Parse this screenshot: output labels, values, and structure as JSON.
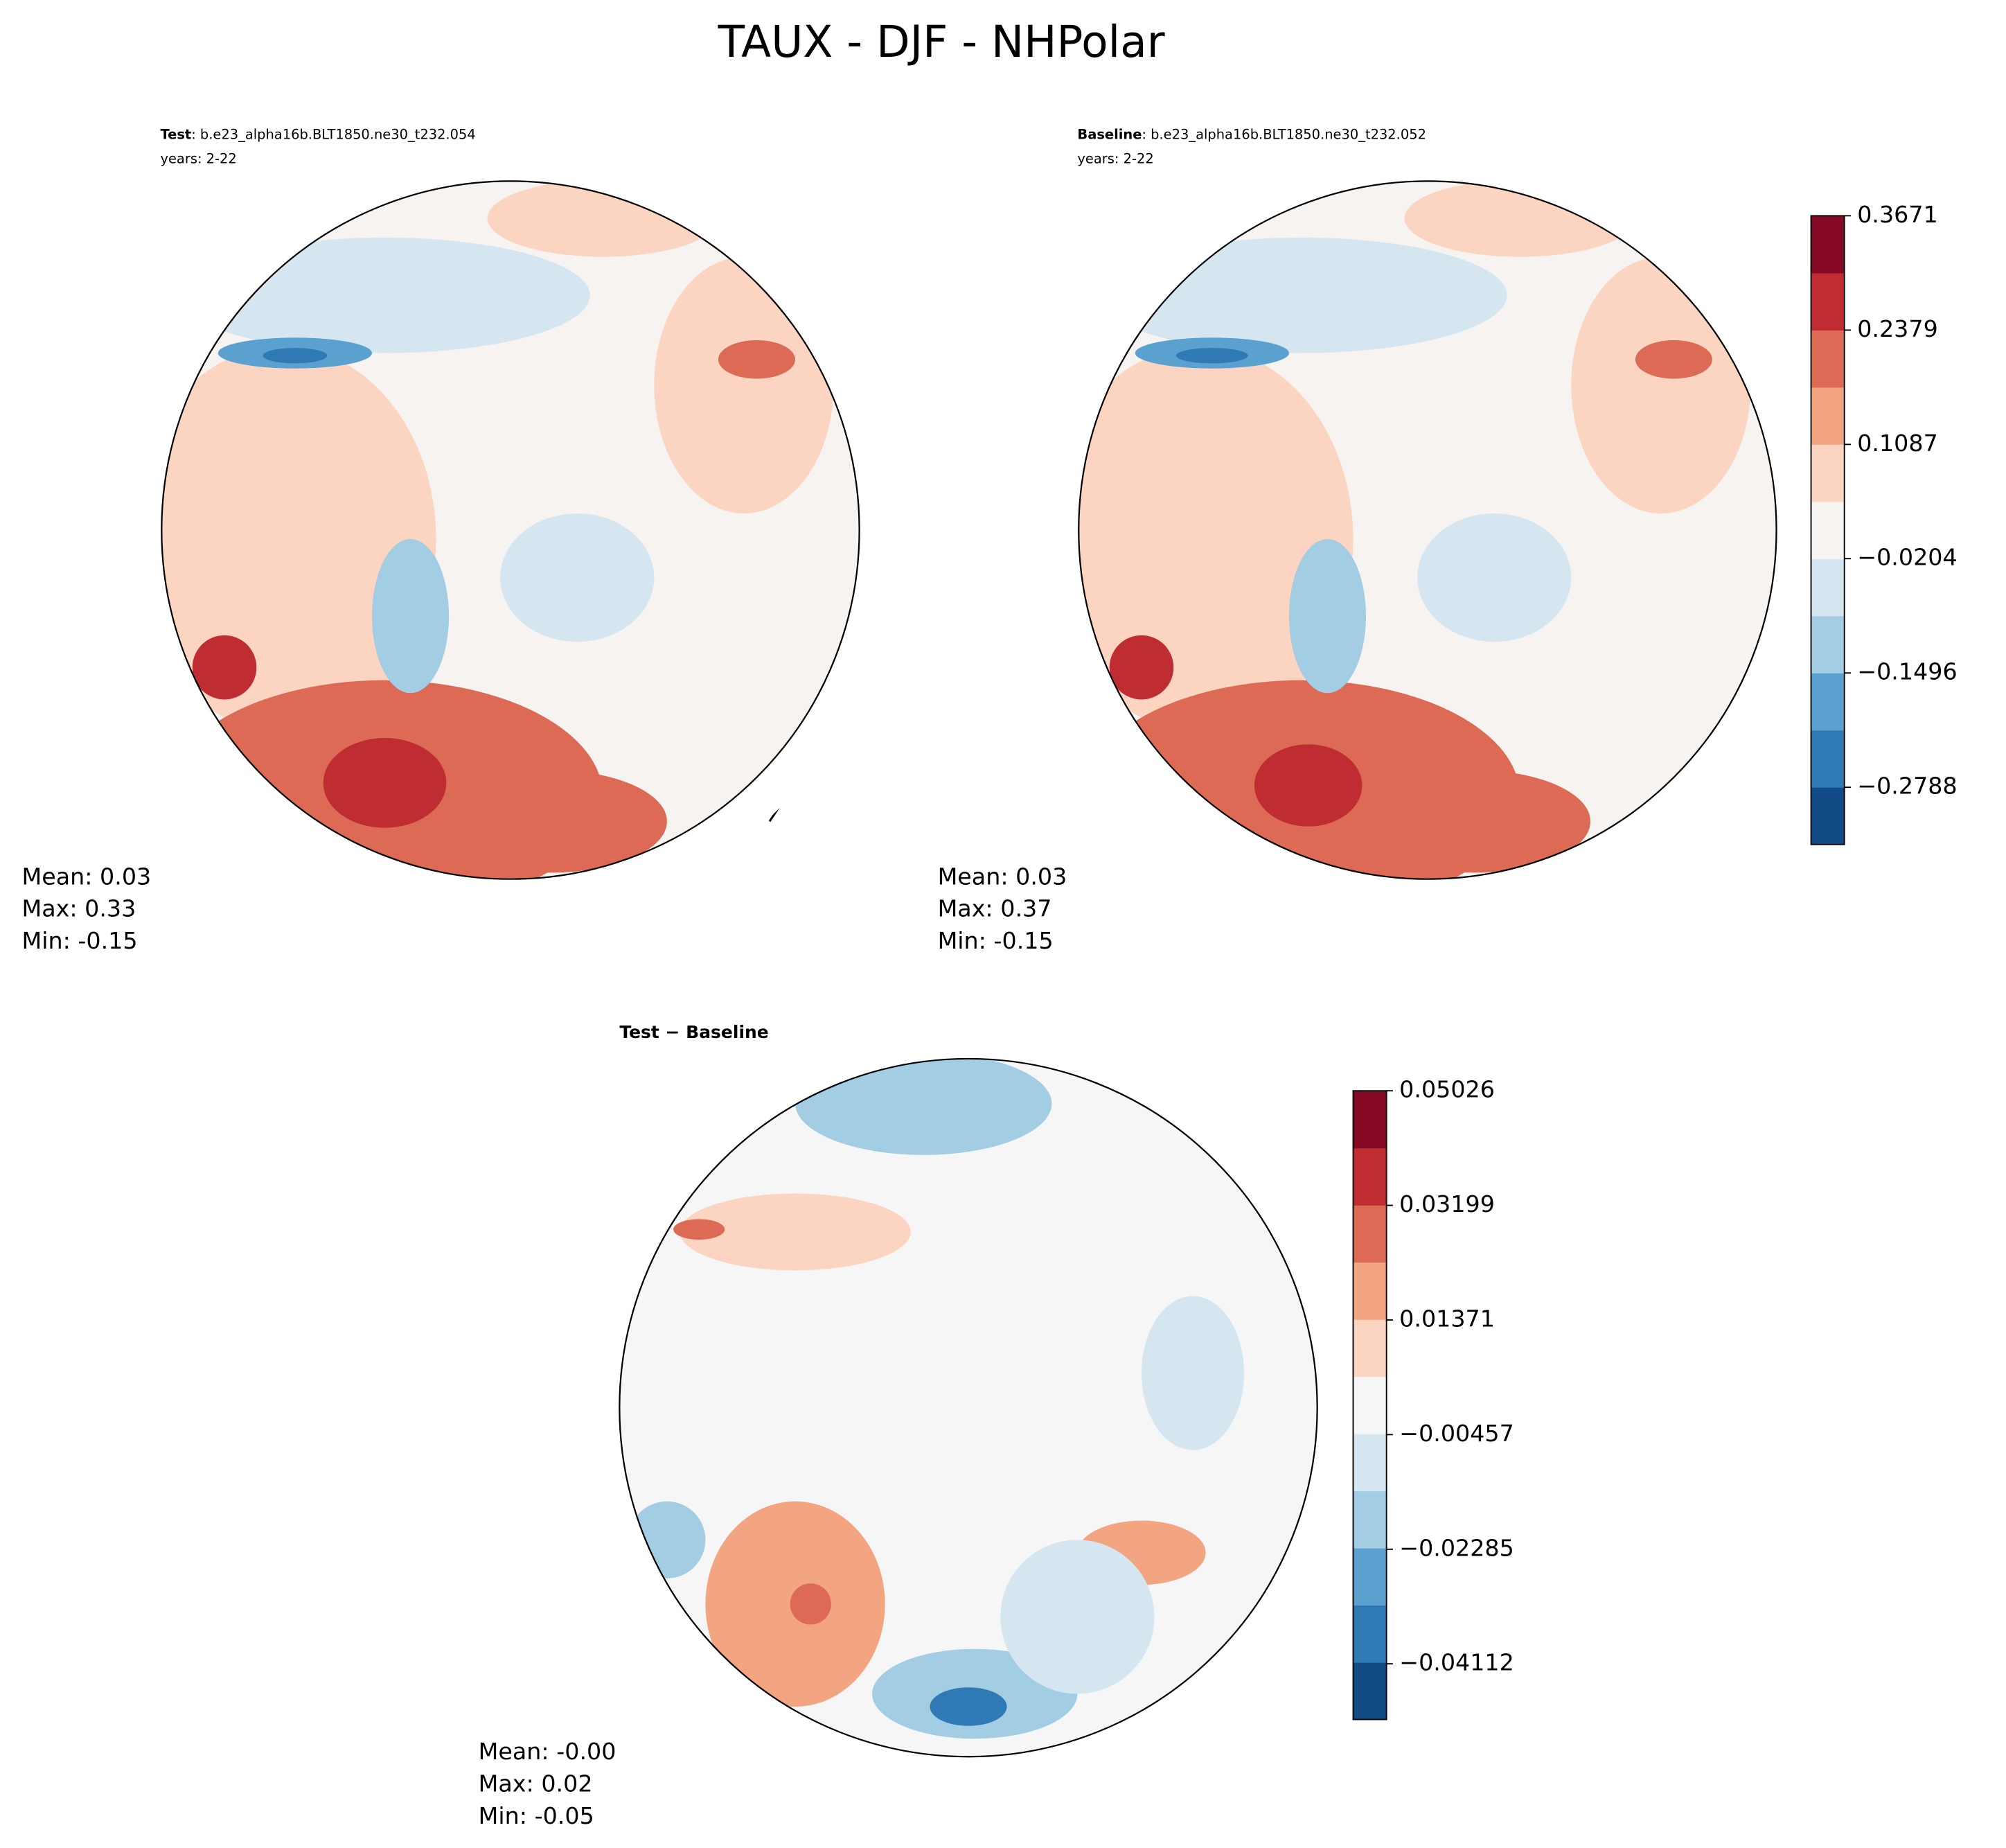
{
  "title": "TAUX - DJF - NHPolar",
  "panels": [
    {
      "name_bold": "Test",
      "name_rest": ": b.e23_alpha16b.BLT1850.ne30_t232.054",
      "years": "years: 2-22",
      "stats": [
        "Mean:  0.03",
        "Max:  0.33",
        "Min: -0.15"
      ]
    },
    {
      "name_bold": "Baseline",
      "name_rest": ": b.e23_alpha16b.BLT1850.ne30_t232.052",
      "years": "years: 2-22",
      "stats": [
        "Mean:  0.03",
        "Max:  0.37",
        "Min: -0.15"
      ]
    },
    {
      "name_bold": "Test − Baseline",
      "stats": [
        "Mean: -0.00",
        "Max:  0.02",
        "Min: -0.05"
      ]
    }
  ],
  "colorbars": [
    {
      "lim": [
        -0.3434,
        0.3671
      ],
      "ticks": [
        0.3671,
        0.2379,
        0.1087,
        {
          "value": -0.0204,
          "label": "−0.0204"
        },
        {
          "value": -0.1496,
          "label": "−0.1496"
        },
        {
          "value": -0.2788,
          "label": "−0.2788"
        }
      ],
      "colors": [
        "#134b87",
        "#2f79b5",
        "#5aa1cf",
        "#a2cde3",
        "#d6e6f1",
        "#f6f3f1",
        "#fbd5c2",
        "#f3a481",
        "#dc6a54",
        "#bf2c31",
        "#860a25"
      ]
    },
    {
      "lim": [
        -0.05,
        0.05026
      ],
      "ticks": [
        0.05026,
        0.03199,
        0.01371,
        {
          "value": -0.00457,
          "label": "−0.00457"
        },
        {
          "value": -0.02285,
          "label": "−0.02285"
        },
        {
          "value": -0.04112,
          "label": "−0.04112"
        }
      ],
      "colors": [
        "#134b87",
        "#2f79b5",
        "#5aa1cf",
        "#a2cde3",
        "#d6e6f1",
        "#f6f6f6",
        "#fbd5c2",
        "#f3a481",
        "#dc6a54",
        "#bf2c31",
        "#860a25"
      ]
    }
  ]
}
